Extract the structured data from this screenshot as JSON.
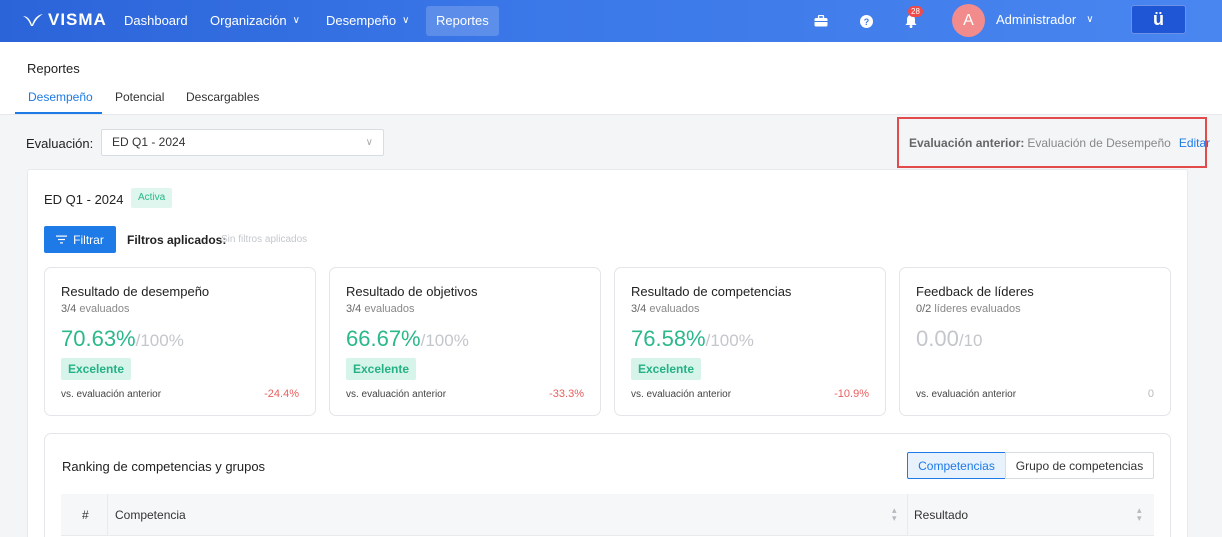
{
  "topbar": {
    "logo": "VISMA",
    "nav": [
      {
        "label": "Dashboard"
      },
      {
        "label": "Organización"
      },
      {
        "label": "Desempeño"
      },
      {
        "label": "Reportes"
      }
    ],
    "notification_count": "28",
    "avatar_letter": "A",
    "user_name": "Administrador",
    "brand_button": "ü"
  },
  "subheader": {
    "title": "Reportes",
    "tabs": [
      {
        "label": "Desempeño"
      },
      {
        "label": "Potencial"
      },
      {
        "label": "Descargables"
      }
    ]
  },
  "evaluation": {
    "label": "Evaluación:",
    "selected": "ED Q1 - 2024",
    "previous_label": "Evaluación anterior:",
    "previous_value": "Evaluación de Desempeño",
    "edit_label": "Editar"
  },
  "panel": {
    "title": "ED Q1 - 2024",
    "status": "Activa",
    "filter_button": "Filtrar",
    "filters_label": "Filtros aplicados:",
    "filters_value": "Sin filtros aplicados"
  },
  "cards": [
    {
      "title": "Resultado de desempeño",
      "sub_strong": "3/4",
      "sub": " evaluados",
      "score": "70.63%",
      "max": "/100%",
      "chip": "Excelente",
      "vs": "vs. evaluación anterior",
      "delta": "-24.4%"
    },
    {
      "title": "Resultado de objetivos",
      "sub_strong": "3/4",
      "sub": " evaluados",
      "score": "66.67%",
      "max": "/100%",
      "chip": "Excelente",
      "vs": "vs. evaluación anterior",
      "delta": "-33.3%"
    },
    {
      "title": "Resultado de competencias",
      "sub_strong": "3/4",
      "sub": " evaluados",
      "score": "76.58%",
      "max": "/100%",
      "chip": "Excelente",
      "vs": "vs. evaluación anterior",
      "delta": "-10.9%"
    },
    {
      "title": "Feedback de líderes",
      "sub_strong": "0/2",
      "sub": " líderes evaluados",
      "score": "0.00",
      "max": "/10",
      "chip": "",
      "vs": "vs. evaluación anterior",
      "delta": "0"
    }
  ],
  "ranking": {
    "title": "Ranking de competencias y grupos",
    "toggle_active": "Competencias",
    "toggle_other": "Grupo de competencias",
    "columns": [
      "#",
      "Competencia",
      "Resultado"
    ]
  },
  "colors": {
    "topbar": "#3b78e8",
    "accent": "#1e7ae6",
    "success": "#2bb88a",
    "negative": "#e86060",
    "highlight_border": "#e24b4b"
  }
}
